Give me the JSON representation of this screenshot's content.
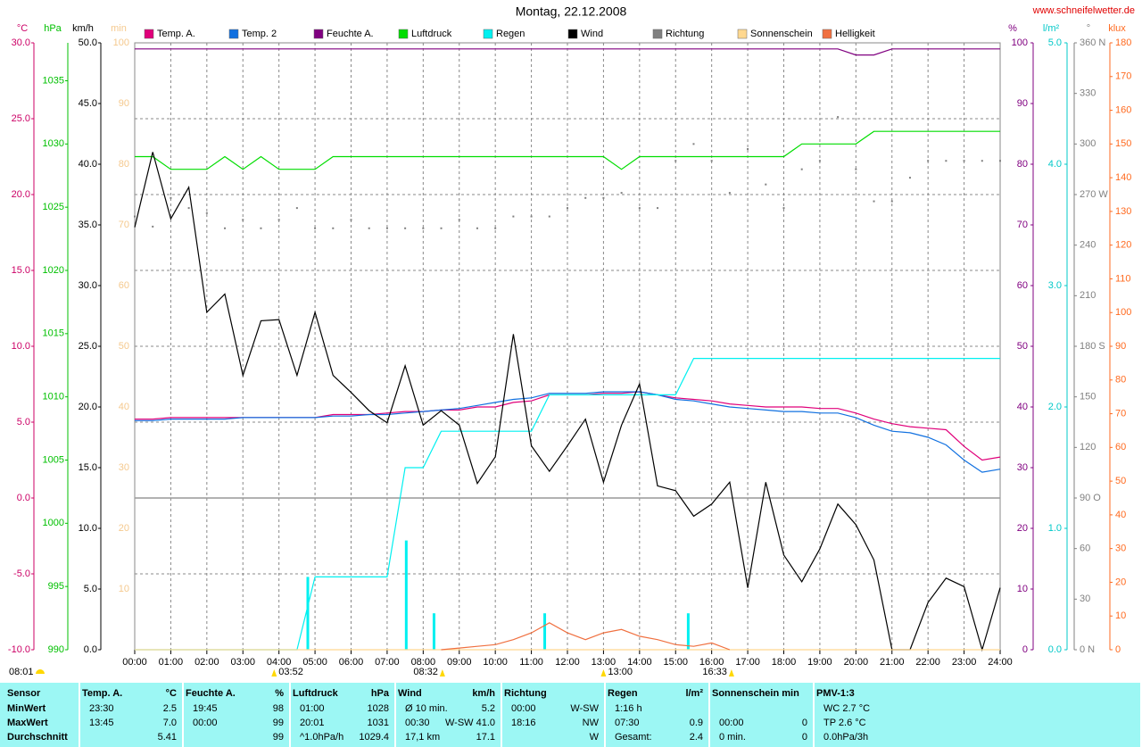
{
  "chart_data": {
    "type": "line",
    "title": "Montag, 22.12.2008",
    "source": "www.schneifelwetter.de",
    "sunrise_label": "08:01",
    "xlim": [
      0,
      24
    ],
    "xticks": [
      {
        "value": 0,
        "label": "00:00"
      },
      {
        "value": 1,
        "label": "01:00"
      },
      {
        "value": 2,
        "label": "02:00"
      },
      {
        "value": 3,
        "label": "03:00"
      },
      {
        "value": 4,
        "label": "04:00"
      },
      {
        "value": 5,
        "label": "05:00"
      },
      {
        "value": 6,
        "label": "06:00"
      },
      {
        "value": 7,
        "label": "07:00"
      },
      {
        "value": 8,
        "label": "08:00"
      },
      {
        "value": 9,
        "label": "09:00"
      },
      {
        "value": 10,
        "label": "10:00"
      },
      {
        "value": 11,
        "label": "11:00"
      },
      {
        "value": 12,
        "label": "12:00"
      },
      {
        "value": 13,
        "label": "13:00"
      },
      {
        "value": 14,
        "label": "14:00"
      },
      {
        "value": 15,
        "label": "15:00"
      },
      {
        "value": 16,
        "label": "16:00"
      },
      {
        "value": 17,
        "label": "17:00"
      },
      {
        "value": 18,
        "label": "18:00"
      },
      {
        "value": 19,
        "label": "19:00"
      },
      {
        "value": 20,
        "label": "20:00"
      },
      {
        "value": 21,
        "label": "21:00"
      },
      {
        "value": 22,
        "label": "22:00"
      },
      {
        "value": 23,
        "label": "23:00"
      },
      {
        "value": 24,
        "label": "24:00"
      }
    ],
    "grid": true,
    "axes": {
      "temp": {
        "unit": "°C",
        "color": "#cc0066",
        "ylim": [
          -10,
          30
        ],
        "yticks": [
          {
            "value": -10,
            "label": "-10.0"
          },
          {
            "value": -5,
            "label": "-5.0"
          },
          {
            "value": 0,
            "label": "0.0"
          },
          {
            "value": 5,
            "label": "5.0"
          },
          {
            "value": 10,
            "label": "10.0"
          },
          {
            "value": 15,
            "label": "15.0"
          },
          {
            "value": 20,
            "label": "20.0"
          },
          {
            "value": 25,
            "label": "25.0"
          },
          {
            "value": 30,
            "label": "30.0"
          }
        ]
      },
      "pressure": {
        "unit": "hPa",
        "color": "#00c000",
        "ylim": [
          990,
          1038
        ],
        "yticks": [
          990,
          995,
          1000,
          1005,
          1010,
          1015,
          1020,
          1025,
          1030,
          1035
        ]
      },
      "wind": {
        "unit": "km/h",
        "color": "#000000",
        "ylim": [
          0,
          50
        ],
        "yticks": [
          {
            "value": 0,
            "label": "0.0"
          },
          {
            "value": 5,
            "label": "5.0"
          },
          {
            "value": 10,
            "label": "10.0"
          },
          {
            "value": 15,
            "label": "15.0"
          },
          {
            "value": 20,
            "label": "20.0"
          },
          {
            "value": 25,
            "label": "25.0"
          },
          {
            "value": 30,
            "label": "30.0"
          },
          {
            "value": 35,
            "label": "35.0"
          },
          {
            "value": 40,
            "label": "40.0"
          },
          {
            "value": 45,
            "label": "45.0"
          },
          {
            "value": 50,
            "label": "50.0"
          }
        ]
      },
      "sun": {
        "unit": "min",
        "color": "#f5c98e",
        "ylim": [
          0,
          100
        ],
        "yticks": [
          10,
          20,
          30,
          40,
          50,
          60,
          70,
          80,
          90,
          100
        ]
      },
      "humidity": {
        "unit": "%",
        "color": "#800080",
        "ylim": [
          0,
          100
        ],
        "yticks": [
          0,
          10,
          20,
          30,
          40,
          50,
          60,
          70,
          80,
          90,
          100
        ]
      },
      "rain": {
        "unit": "l/m²",
        "color": "#00c8c8",
        "ylim": [
          0,
          5
        ],
        "yticks": [
          {
            "value": 0,
            "label": "0.0"
          },
          {
            "value": 1,
            "label": "1.0"
          },
          {
            "value": 2,
            "label": "2.0"
          },
          {
            "value": 3,
            "label": "3.0"
          },
          {
            "value": 4,
            "label": "4.0"
          },
          {
            "value": 5,
            "label": "5.0"
          }
        ]
      },
      "direction": {
        "unit": "°",
        "color": "#808080",
        "ylim": [
          0,
          360
        ],
        "yticks": [
          {
            "value": 0,
            "label": "0 N"
          },
          30,
          60,
          {
            "value": 90,
            "label": "90 O"
          },
          120,
          150,
          {
            "value": 180,
            "label": "180 S"
          },
          210,
          240,
          {
            "value": 270,
            "label": "270 W"
          },
          300,
          330,
          {
            "value": 360,
            "label": "360 N"
          }
        ]
      },
      "klux": {
        "unit": "klux",
        "color": "#ff6a1f",
        "ylim": [
          0,
          180
        ],
        "yticks": [
          0,
          10,
          20,
          30,
          40,
          50,
          60,
          70,
          80,
          90,
          100,
          110,
          120,
          130,
          140,
          150,
          160,
          170,
          180
        ]
      }
    },
    "x": [
      0,
      0.5,
      1,
      1.5,
      2,
      2.5,
      3,
      3.5,
      4,
      4.5,
      5,
      5.5,
      6,
      6.5,
      7,
      7.5,
      8,
      8.5,
      9,
      9.5,
      10,
      10.5,
      11,
      11.5,
      12,
      12.5,
      13,
      13.5,
      14,
      14.5,
      15,
      15.5,
      16,
      16.5,
      17,
      17.5,
      18,
      18.5,
      19,
      19.5,
      20,
      20.5,
      21,
      21.5,
      22,
      22.5,
      23,
      23.5,
      24
    ],
    "series": [
      {
        "name": "Temp. A.",
        "color": "#e0007a",
        "axis": "temp",
        "style": "line",
        "values": [
          5.2,
          5.2,
          5.3,
          5.3,
          5.3,
          5.3,
          5.3,
          5.3,
          5.3,
          5.3,
          5.3,
          5.5,
          5.5,
          5.5,
          5.6,
          5.7,
          5.7,
          5.8,
          5.8,
          6.0,
          6.0,
          6.3,
          6.4,
          6.8,
          6.8,
          6.8,
          6.9,
          6.9,
          7.0,
          6.8,
          6.6,
          6.5,
          6.4,
          6.2,
          6.1,
          6.0,
          6.0,
          6.0,
          5.9,
          5.9,
          5.6,
          5.2,
          4.9,
          4.7,
          4.6,
          4.5,
          3.4,
          2.5,
          2.7
        ]
      },
      {
        "name": "Temp. 2",
        "color": "#1070e0",
        "axis": "temp",
        "style": "line",
        "values": [
          5.1,
          5.1,
          5.2,
          5.2,
          5.2,
          5.2,
          5.3,
          5.3,
          5.3,
          5.3,
          5.3,
          5.4,
          5.4,
          5.5,
          5.5,
          5.6,
          5.7,
          5.8,
          5.9,
          6.1,
          6.3,
          6.5,
          6.6,
          6.9,
          6.9,
          6.9,
          7.0,
          7.0,
          7.0,
          6.8,
          6.5,
          6.4,
          6.2,
          6.0,
          5.9,
          5.8,
          5.7,
          5.7,
          5.6,
          5.6,
          5.3,
          4.8,
          4.4,
          4.3,
          4.0,
          3.5,
          2.5,
          1.7,
          1.9
        ]
      },
      {
        "name": "Feuchte A.",
        "color": "#800080",
        "axis": "humidity",
        "style": "line",
        "values": [
          99,
          99,
          99,
          99,
          99,
          99,
          99,
          99,
          99,
          99,
          99,
          99,
          99,
          99,
          99,
          99,
          99,
          99,
          99,
          99,
          99,
          99,
          99,
          99,
          99,
          99,
          99,
          99,
          99,
          99,
          99,
          99,
          99,
          99,
          99,
          99,
          99,
          99,
          99,
          99,
          98,
          98,
          99,
          99,
          99,
          99,
          99,
          99,
          99
        ]
      },
      {
        "name": "Luftdruck",
        "color": "#00dd00",
        "axis": "pressure",
        "style": "line",
        "values": [
          1029,
          1029,
          1028,
          1028,
          1028,
          1029,
          1028,
          1029,
          1028,
          1028,
          1028,
          1029,
          1029,
          1029,
          1029,
          1029,
          1029,
          1029,
          1029,
          1029,
          1029,
          1029,
          1029,
          1029,
          1029,
          1029,
          1029,
          1028,
          1029,
          1029,
          1029,
          1029,
          1029,
          1029,
          1029,
          1029,
          1029,
          1030,
          1030,
          1030,
          1030,
          1031,
          1031,
          1031,
          1031,
          1031,
          1031,
          1031,
          1031
        ]
      },
      {
        "name": "Regen",
        "color": "#00f0f0",
        "axis": "rain",
        "style": "line",
        "values": [
          0,
          0,
          0,
          0,
          0,
          0,
          0,
          0,
          0,
          0,
          0.6,
          0.6,
          0.6,
          0.6,
          0.6,
          1.5,
          1.5,
          1.8,
          1.8,
          1.8,
          1.8,
          1.8,
          1.8,
          2.1,
          2.1,
          2.1,
          2.1,
          2.1,
          2.1,
          2.1,
          2.1,
          2.4,
          2.4,
          2.4,
          2.4,
          2.4,
          2.4,
          2.4,
          2.4,
          2.4,
          2.4,
          2.4,
          2.4,
          2.4,
          2.4,
          2.4,
          2.4,
          2.4,
          2.4
        ],
        "bars": {
          "x": [
            4.8,
            7.53,
            8.3,
            11.37,
            15.35
          ],
          "values": [
            0.6,
            0.9,
            0.3,
            0.3,
            0.3
          ]
        }
      },
      {
        "name": "Wind",
        "color": "#000000",
        "axis": "wind",
        "style": "line",
        "values": [
          34.8,
          41.0,
          35.5,
          38.1,
          27.8,
          29.3,
          22.6,
          27.1,
          27.2,
          22.6,
          27.8,
          22.6,
          21.2,
          19.7,
          18.7,
          23.4,
          18.5,
          19.7,
          18.5,
          13.7,
          15.9,
          26.0,
          16.8,
          14.7,
          16.8,
          19.0,
          13.8,
          18.5,
          21.9,
          13.5,
          13.1,
          11.0,
          12.0,
          13.8,
          5.1,
          13.8,
          7.8,
          5.6,
          8.3,
          12.0,
          10.3,
          7.4,
          0,
          0,
          3.9,
          5.9,
          5.2,
          0,
          5.1
        ]
      },
      {
        "name": "Richtung",
        "color": "#808080",
        "axis": "direction",
        "style": "dots",
        "values": [
          257,
          251,
          268,
          262,
          259,
          250,
          255,
          250,
          255,
          262,
          250,
          250,
          255,
          250,
          250,
          250,
          250,
          250,
          255,
          250,
          250,
          257,
          257,
          257,
          262,
          268,
          268,
          271,
          262,
          262,
          290,
          300,
          290,
          271,
          297,
          276,
          262,
          285,
          290,
          316,
          285,
          266,
          266,
          280,
          290,
          290,
          290,
          290,
          290
        ]
      },
      {
        "name": "Sonnenschein",
        "color": "#ffd890",
        "axis": "sun",
        "style": "line",
        "values": [
          0,
          0,
          0,
          0,
          0,
          0,
          0,
          0,
          0,
          0,
          0,
          0,
          0,
          0,
          0,
          0,
          0,
          0,
          0,
          0,
          0,
          0,
          0,
          0,
          0,
          0,
          0,
          0,
          0,
          0,
          0,
          0,
          0,
          0,
          0,
          0,
          0,
          0,
          0,
          0,
          0,
          0,
          0,
          0,
          0,
          0,
          0,
          0,
          0
        ]
      },
      {
        "name": "Helligkeit",
        "color": "#f07040",
        "axis": "klux",
        "style": "line",
        "values": [
          null,
          null,
          null,
          null,
          null,
          null,
          null,
          null,
          null,
          null,
          null,
          null,
          null,
          null,
          null,
          null,
          null,
          0,
          0.5,
          1,
          1.5,
          3,
          5,
          8,
          5,
          3,
          5,
          6,
          4,
          3,
          1.5,
          1,
          2,
          0,
          null,
          null,
          null,
          null,
          null,
          null,
          null,
          null,
          null,
          null,
          null,
          null,
          null,
          null,
          null
        ]
      }
    ],
    "events": [
      {
        "x": 3.867,
        "label": "03:52"
      },
      {
        "x": 8.533,
        "label": "08:32"
      },
      {
        "x": 13,
        "label": "13:00"
      },
      {
        "x": 16.55,
        "label": "16:33"
      }
    ]
  },
  "table": {
    "groups": [
      {
        "title": "Sensor",
        "rows": [
          {
            "l": "MinWert"
          },
          {
            "l": "MaxWert"
          },
          {
            "l": "Durchschnitt"
          }
        ]
      },
      {
        "title": "Temp. A.",
        "unit": "°C",
        "rows": [
          {
            "l": "23:30",
            "r": "2.5"
          },
          {
            "l": "13:45",
            "r": "7.0"
          },
          {
            "r": "5.41"
          }
        ]
      },
      {
        "title": "Feuchte A.",
        "unit": "%",
        "rows": [
          {
            "l": "19:45",
            "r": "98"
          },
          {
            "l": "00:00",
            "r": "99"
          },
          {
            "r": "99"
          }
        ]
      },
      {
        "title": "Luftdruck",
        "unit": "hPa",
        "rows": [
          {
            "l": "01:00",
            "r": "1028"
          },
          {
            "l": "20:01",
            "r": "1031"
          },
          {
            "l": "^1.0hPa/h",
            "r": "1029.4"
          }
        ]
      },
      {
        "title": "Wind",
        "unit": "km/h",
        "rows": [
          {
            "l": "Ø 10 min.",
            "r": "5.2"
          },
          {
            "l": "00:30",
            "r": "W-SW 41.0"
          },
          {
            "l": "17,1 km",
            "r": "17.1"
          }
        ]
      },
      {
        "title": "Richtung",
        "rows": [
          {
            "l": "00:00",
            "r": "W-SW"
          },
          {
            "l": "18:16",
            "r": "NW"
          },
          {
            "r": "W"
          }
        ]
      },
      {
        "title": "Regen",
        "unit": "l/m²",
        "rows": [
          {
            "l": "1:16 h"
          },
          {
            "l": "07:30",
            "r": "0.9"
          },
          {
            "l": "Gesamt:",
            "r": "2.4"
          }
        ]
      },
      {
        "title": "Sonnenschein min",
        "rows": [
          {},
          {
            "l": "00:00",
            "r": "0"
          },
          {
            "l": "0 min.",
            "r": "0"
          }
        ]
      },
      {
        "title": "PMV-1:3",
        "rows": [
          {
            "l": "WC 2.7 °C"
          },
          {
            "l": "TP 2.6 °C"
          },
          {
            "l": "0.0hPa/3h"
          }
        ]
      }
    ]
  }
}
